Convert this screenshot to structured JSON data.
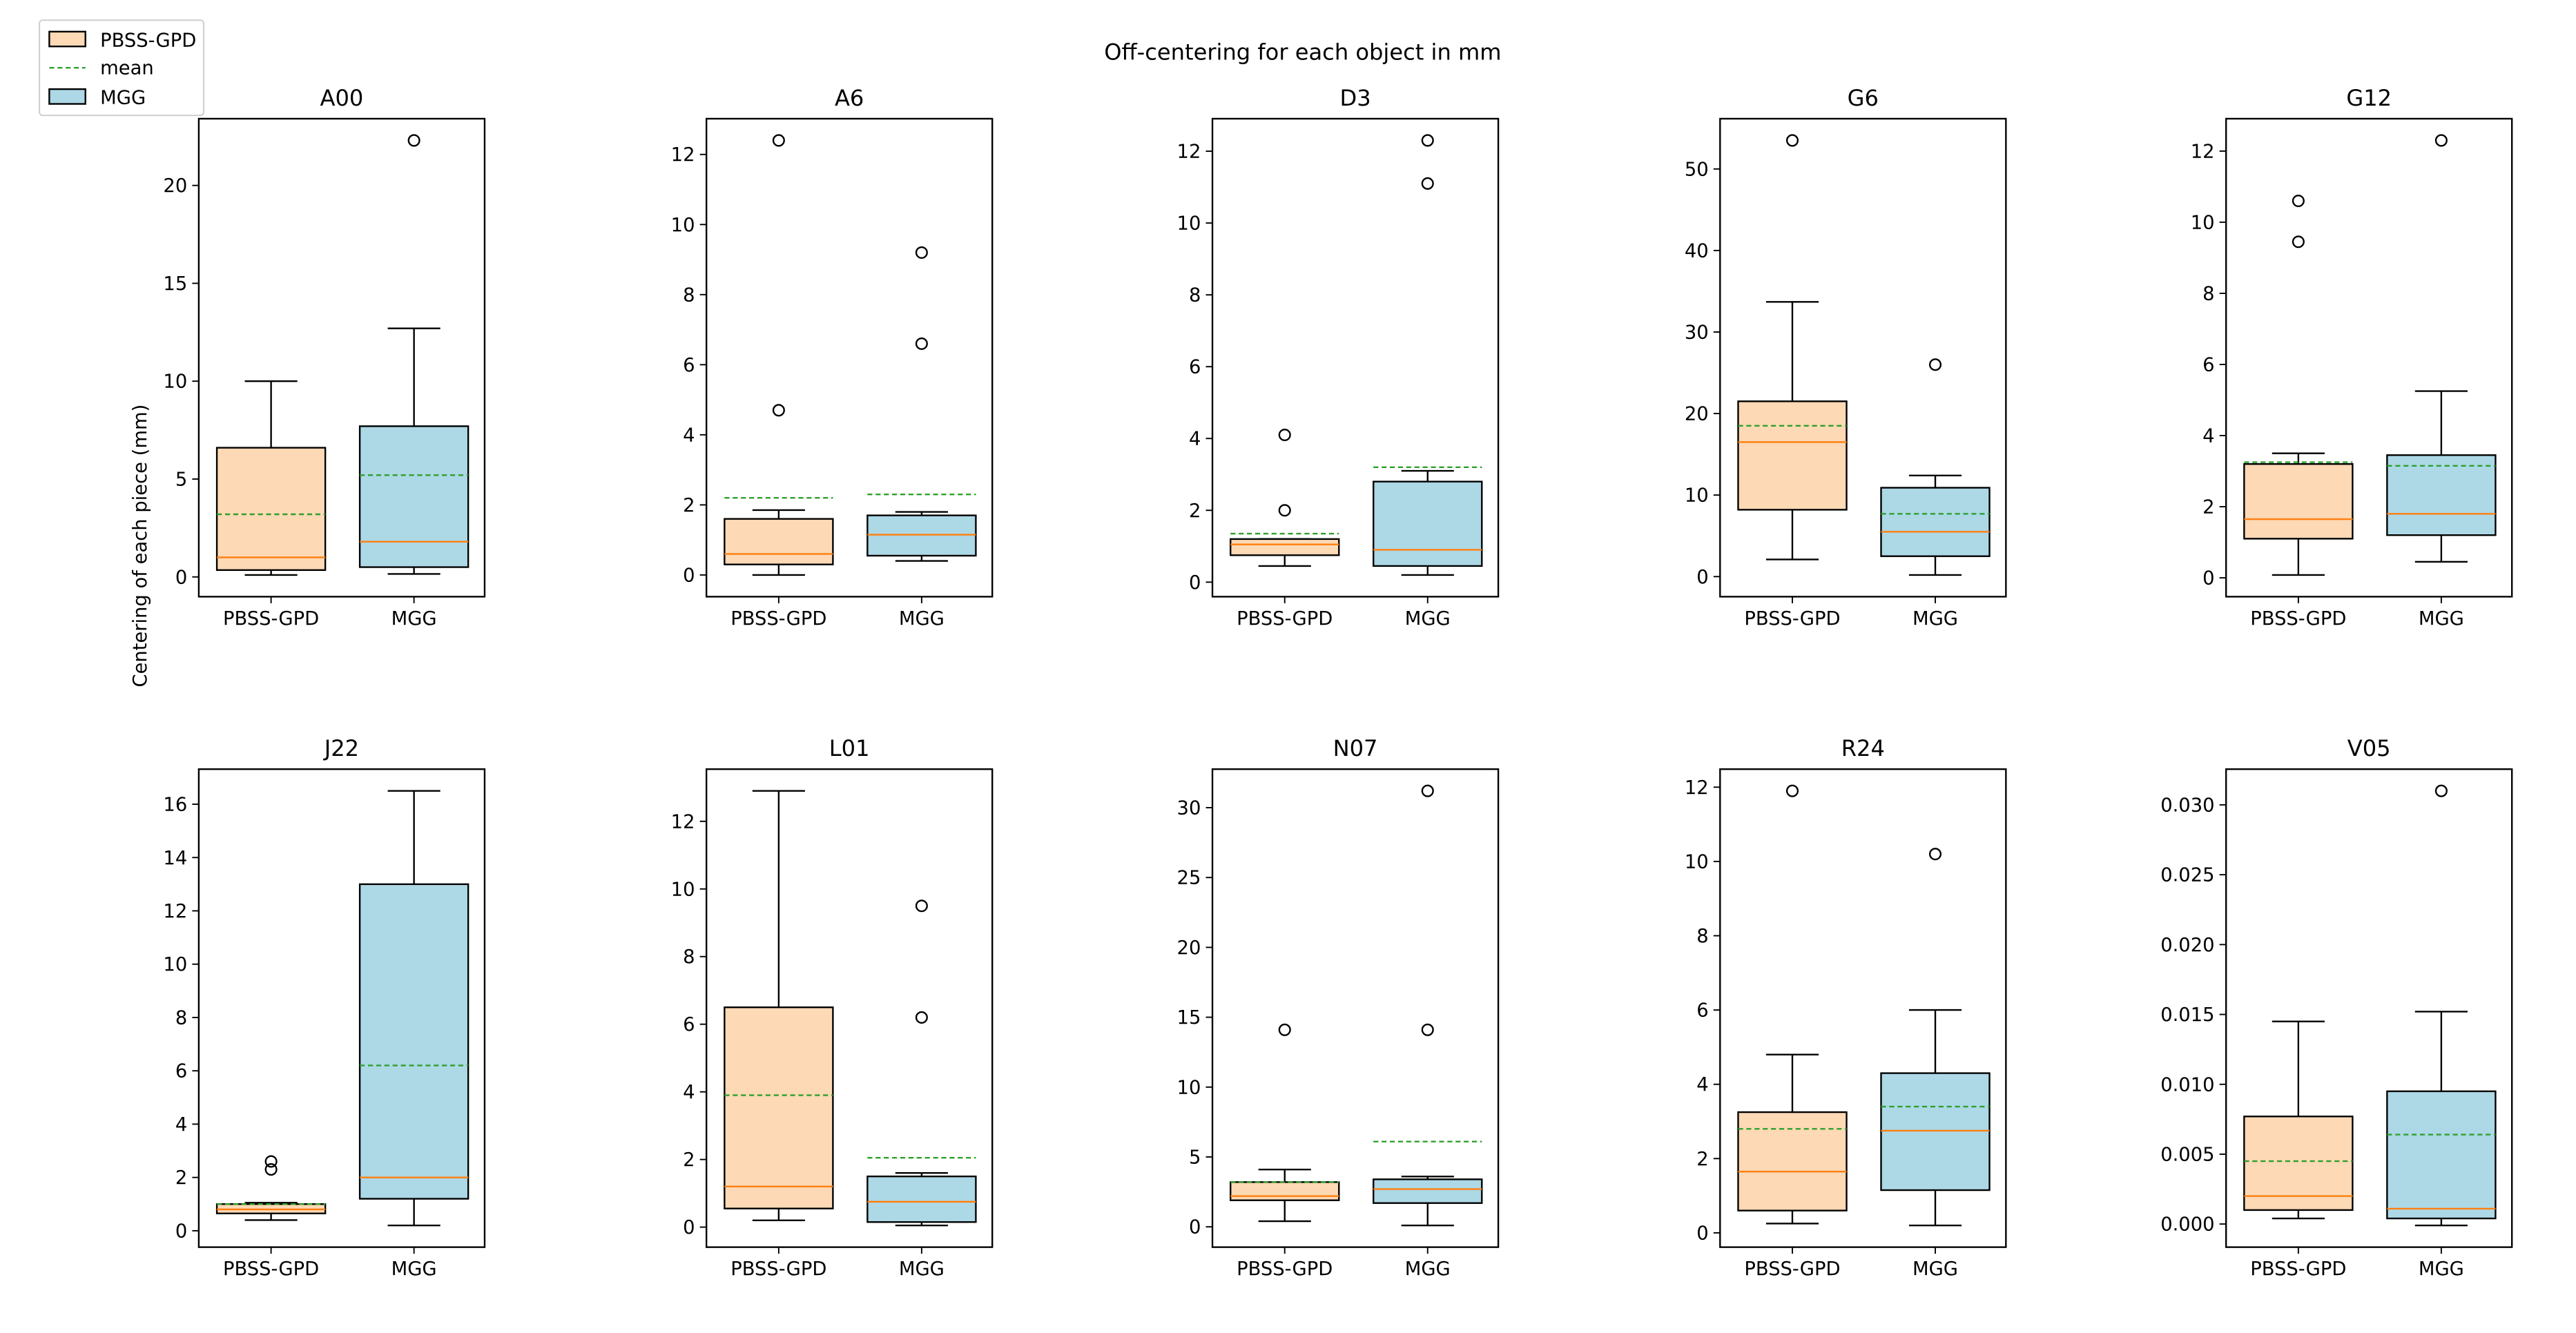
{
  "chart_data": {
    "type": "boxplot",
    "title": "Off-centering for each object in mm",
    "ylabel": "Centering of each piece (mm)",
    "legend": {
      "placement": "top-left",
      "entries": [
        {
          "label": "PBSS-GPD",
          "kind": "patch",
          "color": "#fdd9b5"
        },
        {
          "label": "mean",
          "kind": "dashed-line",
          "color": "#2ca02c"
        },
        {
          "label": "MGG",
          "kind": "patch",
          "color": "#add8e6"
        }
      ]
    },
    "colors": {
      "PBSS-GPD": "#fdd9b5",
      "MGG": "#add8e6",
      "median": "#ff7f0e",
      "mean": "#2ca02c",
      "edge": "#000000"
    },
    "categories": [
      "PBSS-GPD",
      "MGG"
    ],
    "panels": [
      {
        "title": "A00",
        "yticks": [
          0,
          5,
          10,
          15,
          20
        ],
        "ticklabels": [
          "0",
          "5",
          "10",
          "15",
          "20"
        ],
        "boxes": [
          {
            "whislo": 0.1,
            "q1": 0.35,
            "med": 1.0,
            "q3": 6.6,
            "whishi": 10.0,
            "mean": 3.2,
            "fliers": []
          },
          {
            "whislo": 0.15,
            "q1": 0.5,
            "med": 1.8,
            "q3": 7.7,
            "whishi": 12.7,
            "mean": 5.2,
            "fliers": [
              22.3
            ]
          }
        ]
      },
      {
        "title": "A6",
        "yticks": [
          0,
          2,
          4,
          6,
          8,
          10,
          12
        ],
        "ticklabels": [
          "0",
          "2",
          "4",
          "6",
          "8",
          "10",
          "12"
        ],
        "boxes": [
          {
            "whislo": 0.0,
            "q1": 0.3,
            "med": 0.6,
            "q3": 1.6,
            "whishi": 1.85,
            "mean": 2.2,
            "fliers": [
              4.7,
              12.4
            ]
          },
          {
            "whislo": 0.4,
            "q1": 0.55,
            "med": 1.15,
            "q3": 1.7,
            "whishi": 1.8,
            "mean": 2.3,
            "fliers": [
              6.6,
              9.2
            ]
          }
        ]
      },
      {
        "title": "D3",
        "yticks": [
          0,
          2,
          4,
          6,
          8,
          10,
          12
        ],
        "ticklabels": [
          "0",
          "2",
          "4",
          "6",
          "8",
          "10",
          "12"
        ],
        "boxes": [
          {
            "whislo": 0.45,
            "q1": 0.75,
            "med": 1.05,
            "q3": 1.2,
            "whishi": 1.2,
            "mean": 1.35,
            "fliers": [
              2.0,
              4.1
            ]
          },
          {
            "whislo": 0.2,
            "q1": 0.45,
            "med": 0.9,
            "q3": 2.8,
            "whishi": 3.1,
            "mean": 3.2,
            "fliers": [
              11.1,
              12.3
            ]
          }
        ]
      },
      {
        "title": "G6",
        "yticks": [
          0,
          10,
          20,
          30,
          40,
          50
        ],
        "ticklabels": [
          "0",
          "10",
          "20",
          "30",
          "40",
          "50"
        ],
        "boxes": [
          {
            "whislo": 2.1,
            "q1": 8.2,
            "med": 16.5,
            "q3": 21.5,
            "whishi": 33.7,
            "mean": 18.5,
            "fliers": [
              53.5
            ]
          },
          {
            "whislo": 0.2,
            "q1": 2.5,
            "med": 5.5,
            "q3": 10.9,
            "whishi": 12.4,
            "mean": 7.7,
            "fliers": [
              26.0
            ]
          }
        ]
      },
      {
        "title": "G12",
        "yticks": [
          0,
          2,
          4,
          6,
          8,
          10,
          12
        ],
        "ticklabels": [
          "0",
          "2",
          "4",
          "6",
          "8",
          "10",
          "12"
        ],
        "boxes": [
          {
            "whislo": 0.08,
            "q1": 1.1,
            "med": 1.65,
            "q3": 3.2,
            "whishi": 3.5,
            "mean": 3.25,
            "fliers": [
              9.45,
              10.6
            ]
          },
          {
            "whislo": 0.45,
            "q1": 1.2,
            "med": 1.8,
            "q3": 3.45,
            "whishi": 5.25,
            "mean": 3.15,
            "fliers": [
              12.3
            ]
          }
        ]
      },
      {
        "title": "J22",
        "yticks": [
          0,
          2,
          4,
          6,
          8,
          10,
          12,
          14,
          16
        ],
        "ticklabels": [
          "0",
          "2",
          "4",
          "6",
          "8",
          "10",
          "12",
          "14",
          "16"
        ],
        "boxes": [
          {
            "whislo": 0.4,
            "q1": 0.65,
            "med": 0.8,
            "q3": 1.0,
            "whishi": 1.05,
            "mean": 1.0,
            "fliers": [
              2.3,
              2.6
            ]
          },
          {
            "whislo": 0.2,
            "q1": 1.2,
            "med": 2.0,
            "q3": 13.0,
            "whishi": 16.5,
            "mean": 6.2,
            "fliers": []
          }
        ]
      },
      {
        "title": "L01",
        "yticks": [
          0,
          2,
          4,
          6,
          8,
          10,
          12
        ],
        "ticklabels": [
          "0",
          "2",
          "4",
          "6",
          "8",
          "10",
          "12"
        ],
        "boxes": [
          {
            "whislo": 0.2,
            "q1": 0.55,
            "med": 1.2,
            "q3": 6.5,
            "whishi": 12.9,
            "mean": 3.9,
            "fliers": []
          },
          {
            "whislo": 0.05,
            "q1": 0.15,
            "med": 0.75,
            "q3": 1.5,
            "whishi": 1.6,
            "mean": 2.05,
            "fliers": [
              6.2,
              9.5
            ]
          }
        ]
      },
      {
        "title": "N07",
        "yticks": [
          0,
          5,
          10,
          15,
          20,
          25,
          30
        ],
        "ticklabels": [
          "0",
          "5",
          "10",
          "15",
          "20",
          "25",
          "30"
        ],
        "boxes": [
          {
            "whislo": 0.4,
            "q1": 1.9,
            "med": 2.2,
            "q3": 3.2,
            "whishi": 4.1,
            "mean": 3.2,
            "fliers": [
              14.1
            ]
          },
          {
            "whislo": 0.1,
            "q1": 1.7,
            "med": 2.7,
            "q3": 3.4,
            "whishi": 3.6,
            "mean": 6.1,
            "fliers": [
              14.1,
              31.2
            ]
          }
        ]
      },
      {
        "title": "R24",
        "yticks": [
          0,
          2,
          4,
          6,
          8,
          10,
          12
        ],
        "ticklabels": [
          "0",
          "2",
          "4",
          "6",
          "8",
          "10",
          "12"
        ],
        "boxes": [
          {
            "whislo": 0.25,
            "q1": 0.6,
            "med": 1.65,
            "q3": 3.25,
            "whishi": 4.8,
            "mean": 2.8,
            "fliers": [
              11.9
            ]
          },
          {
            "whislo": 0.2,
            "q1": 1.15,
            "med": 2.75,
            "q3": 4.3,
            "whishi": 6.0,
            "mean": 3.4,
            "fliers": [
              10.2
            ]
          }
        ]
      },
      {
        "title": "V05",
        "yticks": [
          0,
          0.005,
          0.01,
          0.015,
          0.02,
          0.025,
          0.03
        ],
        "ticklabels": [
          "0.000",
          "0.005",
          "0.010",
          "0.015",
          "0.020",
          "0.025",
          "0.030"
        ],
        "boxes": [
          {
            "whislo": 0.0004,
            "q1": 0.001,
            "med": 0.002,
            "q3": 0.0077,
            "whishi": 0.0145,
            "mean": 0.0045,
            "fliers": []
          },
          {
            "whislo": -0.0001,
            "q1": 0.0004,
            "med": 0.0011,
            "q3": 0.0095,
            "whishi": 0.0152,
            "mean": 0.0064,
            "fliers": [
              0.031
            ]
          }
        ]
      }
    ]
  }
}
